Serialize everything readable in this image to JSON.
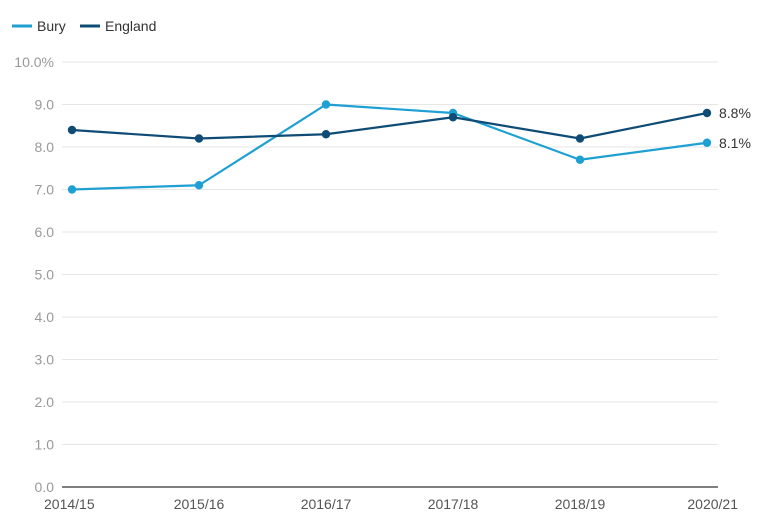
{
  "chart_data": {
    "type": "line",
    "categories": [
      "2014/15",
      "2015/16",
      "2016/17",
      "2017/18",
      "2018/19",
      "2020/21"
    ],
    "y_ticks": [
      "0.0",
      "1.0",
      "2.0",
      "3.0",
      "4.0",
      "5.0",
      "6.0",
      "7.0",
      "8.0",
      "9.0",
      "10.0%"
    ],
    "ylim": [
      0,
      10
    ],
    "grid": true,
    "legend_position": "top-left",
    "series": [
      {
        "name": "Bury",
        "color": "#1fa0d2",
        "values": [
          7.0,
          7.1,
          9.0,
          8.8,
          7.7,
          8.1
        ],
        "end_label": "8.1%"
      },
      {
        "name": "England",
        "color": "#0f4c75",
        "values": [
          8.4,
          8.2,
          8.3,
          8.7,
          8.2,
          8.8
        ],
        "end_label": "8.8%"
      }
    ]
  }
}
